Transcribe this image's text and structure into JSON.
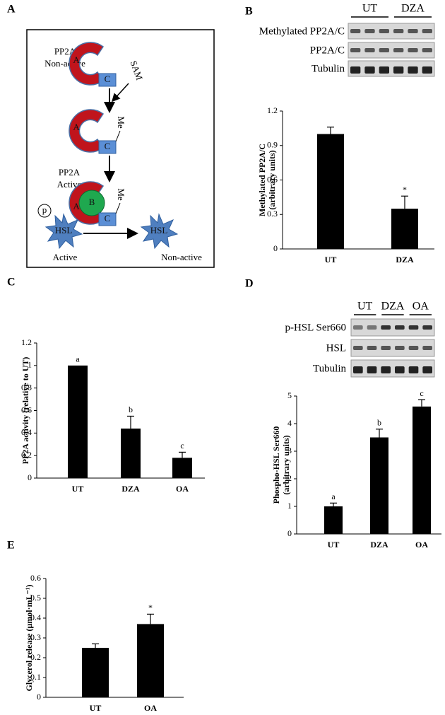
{
  "chart_data": [
    {
      "type": "bar",
      "panel_label": "B",
      "ylabel": [
        "Methylated PP2A/C",
        "(arbitrary units)"
      ],
      "categories": [
        "UT",
        "DZA"
      ],
      "values": [
        1.0,
        0.35
      ],
      "errors": [
        0.06,
        0.11
      ],
      "bar_labels": [
        null,
        "*"
      ],
      "color": "#000000",
      "ylim": [
        0,
        1.2
      ],
      "yticks": [
        0,
        0.3,
        0.6,
        0.9,
        1.2
      ]
    },
    {
      "type": "bar",
      "panel_label": "C",
      "ylabel": [
        "PP2A activity (relative to UT)"
      ],
      "categories": [
        "UT",
        "DZA",
        "OA"
      ],
      "values": [
        1,
        0.44,
        0.18
      ],
      "errors": [
        null,
        0.11,
        0.05
      ],
      "bar_labels": [
        "a",
        "b",
        "c"
      ],
      "color": "#000000",
      "ylim": [
        0,
        1.2
      ],
      "yticks": [
        0,
        0.2,
        0.4,
        0.6,
        0.8,
        1,
        1.2
      ]
    },
    {
      "type": "bar",
      "panel_label": "D",
      "ylabel": [
        "Phospho-HSL Ser660",
        "(arbitrary units)"
      ],
      "categories": [
        "UT",
        "DZA",
        "OA"
      ],
      "values": [
        1.0,
        3.5,
        4.62
      ],
      "errors": [
        0.12,
        0.3,
        0.25
      ],
      "bar_labels": [
        "a",
        "b",
        "c"
      ],
      "color": "#000000",
      "ylim": [
        0,
        5
      ],
      "yticks": [
        0,
        1,
        2,
        3,
        4,
        5
      ]
    },
    {
      "type": "bar",
      "panel_label": "E",
      "ylabel": [
        "Glycerol release (µmol·mL⁻¹)"
      ],
      "categories": [
        "UT",
        "OA"
      ],
      "values": [
        0.25,
        0.37
      ],
      "errors": [
        0.02,
        0.05
      ],
      "bar_labels": [
        null,
        "*"
      ],
      "color": "#000000",
      "ylim": [
        0,
        0.6
      ],
      "yticks": [
        0,
        0.1,
        0.2,
        0.3,
        0.4,
        0.5,
        0.6
      ]
    }
  ],
  "blots": [
    {
      "lanes": [
        "UT",
        "DZA"
      ],
      "rows": [
        "Methylated PP2A/C",
        "PP2A/C",
        "Tubulin"
      ]
    },
    {
      "lanes": [
        "UT",
        "DZA",
        "OA"
      ],
      "rows": [
        "p-HSL Ser660",
        "HSL",
        "Tubulin"
      ]
    }
  ],
  "diagram": {
    "panel_label": "A",
    "top_label": [
      "PP2A",
      "Non-active"
    ],
    "subunit_a": "A",
    "subunit_c": "C",
    "subunit_b": "B",
    "sam": "SAM",
    "me": "Me",
    "mid_label": [
      "PP2A",
      "Active"
    ],
    "phospho": "p",
    "hsl": "HSL",
    "left_state": "Active",
    "right_state": "Non-active"
  }
}
